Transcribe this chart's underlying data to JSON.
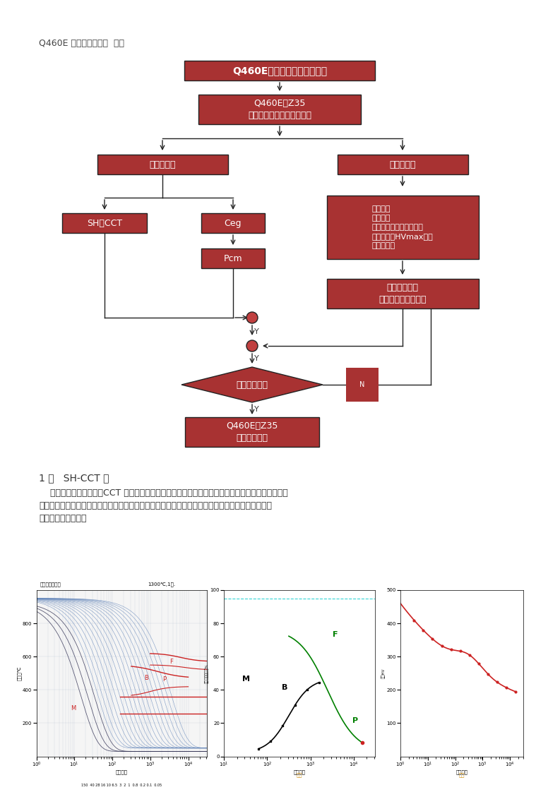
{
  "title_label": "Q460E 焊接性试验研究  技术",
  "bg_color": "#ffffff",
  "box_color": "#a83232",
  "box_color_dark": "#8b2020",
  "box_border_color": "#222222",
  "text_color": "#ffffff",
  "text_color_dark": "#333333",
  "arrow_color": "#222222",
  "main_title_text": "Q460E焊接性试验研究流程图",
  "box1_text": "Q460E－Z35\n焊接性试验技术路线的确定",
  "box_indirect_text": "间接试验法",
  "box_direct_text": "直接试验法",
  "box_ceg_text": "Ceg",
  "box_pcm_text": "Pcm",
  "box_shcct_text": "SH－CCT",
  "box_direct_tests_text": "、热切割\n、热矫正\n、斜ｙ试验（常、低温）\n、最高硬度HVmax试验\n、插销试验",
  "box_weld_rigid_text": "焊接刚性试验\n（含焊接工艺评定）",
  "diamond_text": "分析归纳整理",
  "box_final_text": "Q460E－Z35\n焊接工艺规程",
  "section_header": "1 、   SH-CCT 图",
  "section_body": "    连续冷却组织转变图（CCT 图），可以比较方便地预测焊接热影响区的组织性能和硬度，从而可以\n预测钗材在一定焊接条件下的淨硬倾向和产生冷裂纹的可能性，同时也可以作为调节焊接线能量、改\n进焊接工艺的依据。"
}
